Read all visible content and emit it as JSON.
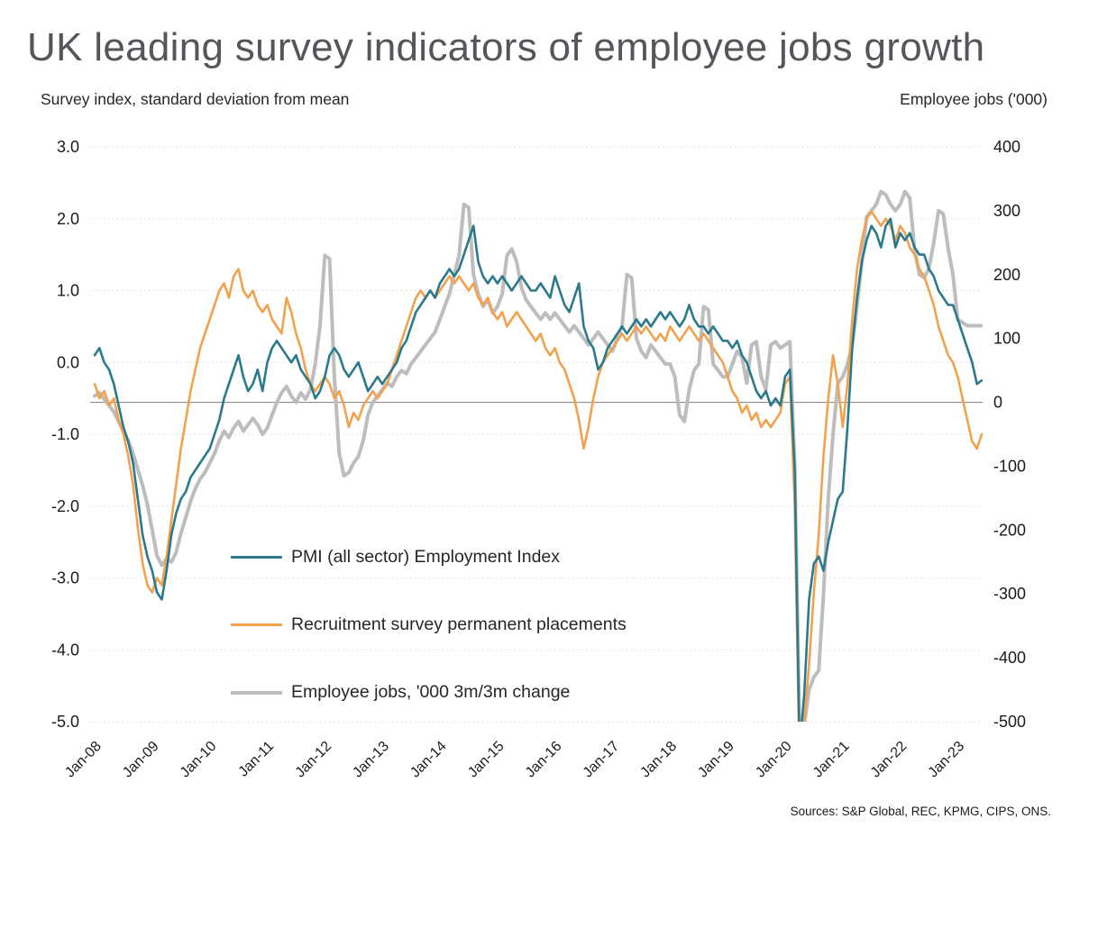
{
  "page": {
    "title": "UK leading survey indicators of employee jobs growth"
  },
  "chart": {
    "left_axis_caption": "Survey index, standard deviation from mean",
    "right_axis_caption": "Employee jobs ('000)",
    "sources": "Sources: S&P Global, REC, KPMG, CIPS, ONS."
  },
  "legend": {
    "items": [
      {
        "label": "PMI (all sector) Employment Index",
        "color": "#2B7A8B"
      },
      {
        "label": "Recruitment survey permanent placements",
        "color": "#F2A24E"
      },
      {
        "label": "Employee jobs, '000 3m/3m change",
        "color": "#BDBDBD"
      }
    ]
  },
  "chart_data": {
    "type": "line",
    "title": "UK leading survey indicators of employee jobs growth",
    "x_start": "Jan-2008",
    "x_frequency": "monthly",
    "x_ticks": [
      "Jan-08",
      "Jan-09",
      "Jan-10",
      "Jan-11",
      "Jan-12",
      "Jan-13",
      "Jan-14",
      "Jan-15",
      "Jan-16",
      "Jan-17",
      "Jan-18",
      "Jan-19",
      "Jan-20",
      "Jan-21",
      "Jan-22",
      "Jan-23"
    ],
    "left_axis": {
      "label": "Survey index, standard deviation from mean",
      "range": [
        3,
        -5
      ],
      "ticks": [
        3,
        2,
        1,
        0,
        -1,
        -2,
        -3,
        -4,
        -5
      ],
      "tick_labels": [
        "3.0",
        "2.0",
        "1.0",
        "0.0",
        "-1.0",
        "-2.0",
        "-3.0",
        "-4.0",
        "-5.0"
      ]
    },
    "right_axis": {
      "label": "Employee jobs ('000)",
      "range": [
        400,
        -500
      ],
      "ticks": [
        400,
        300,
        200,
        100,
        0,
        -100,
        -200,
        -300,
        -400,
        -500
      ],
      "tick_labels": [
        "400",
        "300",
        "200",
        "100",
        "0",
        "-100",
        "-200",
        "-300",
        "-400",
        "-500"
      ]
    },
    "grid": "dotted-horizontal",
    "zero_line_axis": "right",
    "legend_position": "inside-lower-left",
    "series": [
      {
        "name": "PMI (all sector) Employment Index",
        "axis": "left",
        "color": "#2B7A8B",
        "width": 2.6,
        "values": [
          0.1,
          0.2,
          0,
          -0.1,
          -0.3,
          -0.6,
          -0.9,
          -1.1,
          -1.4,
          -1.9,
          -2.4,
          -2.7,
          -2.9,
          -3.2,
          -3.3,
          -2.9,
          -2.4,
          -2.1,
          -1.9,
          -1.8,
          -1.6,
          -1.5,
          -1.4,
          -1.3,
          -1.2,
          -1,
          -0.8,
          -0.5,
          -0.3,
          -0.1,
          0.1,
          -0.2,
          -0.4,
          -0.3,
          -0.1,
          -0.4,
          0,
          0.2,
          0.3,
          0.2,
          0.1,
          0,
          0.1,
          -0.1,
          -0.2,
          -0.3,
          -0.5,
          -0.4,
          -0.2,
          0.1,
          0.2,
          0.1,
          -0.1,
          -0.2,
          -0.1,
          0,
          -0.2,
          -0.4,
          -0.3,
          -0.2,
          -0.3,
          -0.2,
          -0.1,
          0,
          0.2,
          0.3,
          0.5,
          0.7,
          0.8,
          0.9,
          1,
          0.9,
          1.1,
          1.2,
          1.3,
          1.2,
          1.3,
          1.5,
          1.7,
          1.9,
          1.4,
          1.2,
          1.1,
          1.2,
          1.1,
          1.2,
          1.1,
          1,
          1.1,
          1.2,
          1.1,
          1,
          1,
          1.1,
          1,
          0.9,
          1.2,
          1,
          0.8,
          0.7,
          0.9,
          1.1,
          0.5,
          0.3,
          0.2,
          -0.1,
          0,
          0.2,
          0.3,
          0.4,
          0.5,
          0.4,
          0.5,
          0.6,
          0.5,
          0.6,
          0.5,
          0.6,
          0.7,
          0.6,
          0.7,
          0.6,
          0.5,
          0.6,
          0.8,
          0.6,
          0.5,
          0.5,
          0.4,
          0.5,
          0.4,
          0.3,
          0.3,
          0.2,
          0.3,
          0.1,
          0,
          -0.2,
          -0.4,
          -0.5,
          -0.4,
          -0.6,
          -0.5,
          -0.6,
          -0.2,
          -0.1,
          -1.5,
          -5.4,
          -4.6,
          -3.3,
          -2.8,
          -2.7,
          -2.9,
          -2.5,
          -2.2,
          -1.9,
          -1.8,
          -0.9,
          0.2,
          0.9,
          1.4,
          1.7,
          1.9,
          1.8,
          1.6,
          1.9,
          2,
          1.6,
          1.8,
          1.7,
          1.8,
          1.6,
          1.5,
          1.5,
          1.3,
          1.2,
          1,
          0.9,
          0.8,
          0.8,
          0.6,
          0.4,
          0.2,
          0,
          -0.3,
          -0.25
        ]
      },
      {
        "name": "Recruitment survey permanent placements",
        "axis": "left",
        "color": "#F2A24E",
        "width": 2.6,
        "values": [
          -0.3,
          -0.5,
          -0.4,
          -0.6,
          -0.5,
          -0.8,
          -1,
          -1.3,
          -1.7,
          -2.3,
          -2.8,
          -3.1,
          -3.2,
          -3,
          -3.1,
          -2.7,
          -2.2,
          -1.7,
          -1.2,
          -0.8,
          -0.4,
          -0.1,
          0.2,
          0.4,
          0.6,
          0.8,
          1,
          1.1,
          0.9,
          1.2,
          1.3,
          1,
          0.9,
          1,
          0.8,
          0.7,
          0.8,
          0.6,
          0.5,
          0.4,
          0.9,
          0.7,
          0.4,
          0.2,
          -0.1,
          -0.3,
          -0.4,
          -0.3,
          -0.2,
          -0.3,
          -0.5,
          -0.4,
          -0.6,
          -0.9,
          -0.7,
          -0.8,
          -0.6,
          -0.5,
          -0.4,
          -0.5,
          -0.4,
          -0.3,
          -0.1,
          0.1,
          0.3,
          0.5,
          0.7,
          0.9,
          1,
          0.9,
          1,
          0.9,
          1,
          1.1,
          1.2,
          1.1,
          1.2,
          1.1,
          1,
          1.1,
          0.9,
          0.8,
          0.9,
          0.7,
          0.6,
          0.7,
          0.5,
          0.6,
          0.7,
          0.6,
          0.5,
          0.4,
          0.3,
          0.4,
          0.2,
          0.1,
          0.2,
          0,
          -0.1,
          -0.3,
          -0.5,
          -0.8,
          -1.2,
          -0.9,
          -0.5,
          -0.2,
          0,
          0.1,
          0.2,
          0.3,
          0.4,
          0.3,
          0.4,
          0.5,
          0.4,
          0.5,
          0.4,
          0.3,
          0.4,
          0.3,
          0.5,
          0.4,
          0.3,
          0.4,
          0.5,
          0.4,
          0.3,
          0.4,
          0.3,
          0.2,
          0.1,
          0,
          -0.2,
          -0.4,
          -0.5,
          -0.7,
          -0.6,
          -0.8,
          -0.7,
          -0.9,
          -0.8,
          -0.9,
          -0.8,
          -0.7,
          -0.3,
          -0.2,
          -2,
          -5.6,
          -5,
          -4.2,
          -3.2,
          -2.4,
          -1.3,
          -0.5,
          0.1,
          -0.3,
          -0.9,
          -0.3,
          0.6,
          1.3,
          1.7,
          2,
          2.1,
          2,
          1.9,
          2,
          1.9,
          1.7,
          1.9,
          1.8,
          1.6,
          1.5,
          1.3,
          1.2,
          1,
          0.8,
          0.5,
          0.3,
          0.1,
          0,
          -0.2,
          -0.5,
          -0.8,
          -1.1,
          -1.2,
          -1
        ]
      },
      {
        "name": "Employee jobs, '000 3m/3m change",
        "axis": "right",
        "color": "#BDBDBD",
        "width": 4,
        "values": [
          10,
          15,
          5,
          -5,
          -15,
          -30,
          -45,
          -60,
          -80,
          -105,
          -130,
          -160,
          -200,
          -240,
          -255,
          -245,
          -250,
          -235,
          -205,
          -180,
          -155,
          -135,
          -120,
          -110,
          -95,
          -80,
          -60,
          -45,
          -55,
          -40,
          -30,
          -45,
          -35,
          -25,
          -35,
          -50,
          -40,
          -20,
          0,
          15,
          25,
          10,
          0,
          15,
          5,
          20,
          60,
          120,
          230,
          225,
          40,
          -80,
          -115,
          -110,
          -95,
          -85,
          -60,
          -20,
          0,
          10,
          20,
          30,
          25,
          40,
          50,
          45,
          60,
          70,
          80,
          90,
          100,
          110,
          130,
          150,
          170,
          200,
          230,
          310,
          305,
          200,
          170,
          150,
          160,
          140,
          150,
          170,
          230,
          240,
          220,
          180,
          160,
          150,
          140,
          130,
          140,
          130,
          140,
          130,
          120,
          110,
          120,
          110,
          100,
          90,
          100,
          110,
          100,
          90,
          80,
          100,
          120,
          200,
          195,
          100,
          80,
          70,
          90,
          80,
          70,
          60,
          60,
          40,
          -20,
          -30,
          20,
          50,
          60,
          150,
          145,
          60,
          50,
          40,
          40,
          60,
          80,
          70,
          30,
          90,
          95,
          40,
          20,
          90,
          95,
          85,
          90,
          95,
          -100,
          -510,
          -505,
          -450,
          -430,
          -420,
          -300,
          -150,
          -50,
          30,
          40,
          60,
          90,
          150,
          220,
          290,
          300,
          310,
          330,
          325,
          310,
          300,
          310,
          330,
          320,
          240,
          200,
          195,
          210,
          250,
          300,
          295,
          240,
          200,
          130,
          125,
          120,
          120,
          120,
          120
        ]
      }
    ]
  }
}
